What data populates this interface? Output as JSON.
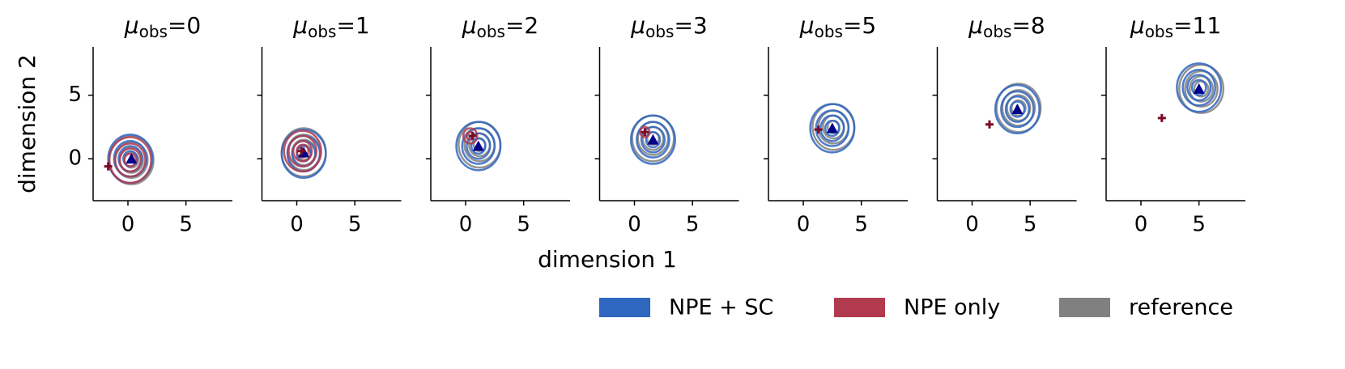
{
  "chart_data": {
    "type": "contour",
    "xlabel": "dimension 1",
    "ylabel": "dimension 2",
    "xlim": [
      -3,
      9
    ],
    "ylim": [
      -3.3,
      8.8
    ],
    "xticks": [
      0,
      5
    ],
    "yticks": [
      0,
      5
    ],
    "series": [
      {
        "name": "NPE + SC",
        "color": "#2f66c0"
      },
      {
        "name": "NPE only",
        "color": "#b23a4e"
      },
      {
        "name": "reference",
        "color": "#808080"
      }
    ],
    "observation_color": "#7a0a25",
    "true_parameter_color": "#00008b",
    "panels": [
      {
        "title": [
          "μ",
          "obs",
          "=0"
        ],
        "observation": [
          -1.7,
          -0.6
        ],
        "true_parameter": [
          0.3,
          0
        ],
        "contours": [
          {
            "center": [
              0.2,
              0
            ],
            "radii": [
              1.9,
              1.4,
              1.0,
              0.6
            ]
          },
          {
            "center": [
              0.2,
              -0.1
            ],
            "radii": [
              1.8,
              1.3,
              0.9,
              0.5
            ]
          },
          {
            "center": [
              0.3,
              -0.1
            ],
            "radii": [
              1.9,
              1.4,
              1.0,
              0.6
            ]
          }
        ]
      },
      {
        "title": [
          "μ",
          "obs",
          "=1"
        ],
        "observation": [
          0.4,
          0.6
        ],
        "true_parameter": [
          0.6,
          0.5
        ],
        "contours": [
          {
            "center": [
              0.6,
              0.4
            ],
            "radii": [
              1.9,
              1.4,
              1.0,
              0.6
            ]
          },
          {
            "center": [
              0.5,
              0.6
            ],
            "radii": [
              1.6,
              1.2,
              0.8,
              0.5
            ]
          },
          {
            "center": [
              0.6,
              0.5
            ],
            "radii": [
              1.9,
              1.4,
              1.0,
              0.6
            ]
          }
        ]
      },
      {
        "title": [
          "μ",
          "obs",
          "=2"
        ],
        "observation": [
          0.6,
          1.8
        ],
        "true_parameter": [
          1.1,
          1.0
        ],
        "contours": [
          {
            "center": [
              1.1,
              1.0
            ],
            "radii": [
              1.9,
              1.4,
              1.0,
              0.6
            ]
          },
          {
            "center": [
              0.4,
              1.8
            ],
            "radii": [
              0.6,
              0.3
            ]
          },
          {
            "center": [
              1.2,
              1.1
            ],
            "radii": [
              1.8,
              1.3,
              0.9,
              0.5
            ]
          }
        ]
      },
      {
        "title": [
          "μ",
          "obs",
          "=3"
        ],
        "observation": [
          0.9,
          2.1
        ],
        "true_parameter": [
          1.6,
          1.5
        ],
        "contours": [
          {
            "center": [
              1.6,
              1.5
            ],
            "radii": [
              1.9,
              1.4,
              1.0,
              0.6
            ]
          },
          {
            "center": [
              0.9,
              2.1
            ],
            "radii": [
              0.4
            ]
          },
          {
            "center": [
              1.6,
              1.6
            ],
            "radii": [
              1.8,
              1.3,
              0.9,
              0.5
            ]
          }
        ]
      },
      {
        "title": [
          "μ",
          "obs",
          "=5"
        ],
        "observation": [
          1.3,
          2.3
        ],
        "true_parameter": [
          2.5,
          2.4
        ],
        "contours": [
          {
            "center": [
              2.5,
              2.4
            ],
            "radii": [
              1.9,
              1.4,
              1.0,
              0.6
            ]
          },
          null,
          {
            "center": [
              2.6,
              2.5
            ],
            "radii": [
              1.8,
              1.3,
              0.9,
              0.5
            ]
          }
        ]
      },
      {
        "title": [
          "μ",
          "obs",
          "=8"
        ],
        "observation": [
          1.5,
          2.7
        ],
        "true_parameter": [
          3.9,
          3.9
        ],
        "contours": [
          {
            "center": [
              3.9,
              3.9
            ],
            "radii": [
              1.9,
              1.4,
              1.0,
              0.6
            ]
          },
          null,
          {
            "center": [
              4.0,
              4.0
            ],
            "radii": [
              1.9,
              1.4,
              1.0,
              0.6
            ]
          }
        ]
      },
      {
        "title": [
          "μ",
          "obs",
          "=11"
        ],
        "observation": [
          1.8,
          3.2
        ],
        "true_parameter": [
          5.0,
          5.5
        ],
        "contours": [
          {
            "center": [
              5.0,
              5.6
            ],
            "radii": [
              1.9,
              1.4,
              1.0,
              0.6
            ]
          },
          null,
          {
            "center": [
              5.2,
              5.5
            ],
            "radii": [
              1.9,
              1.4,
              1.0,
              0.6
            ]
          }
        ]
      }
    ]
  }
}
